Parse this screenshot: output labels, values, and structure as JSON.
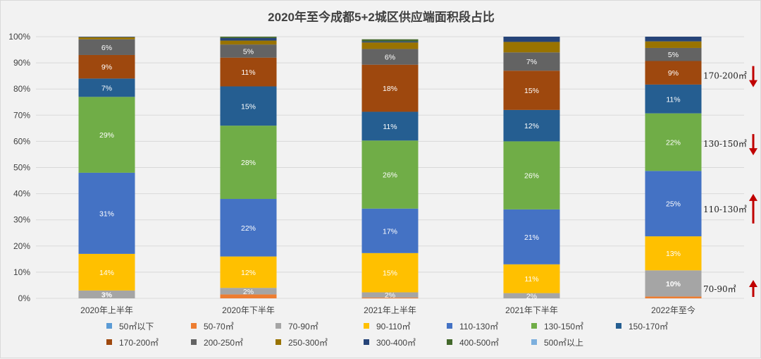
{
  "chart_data": {
    "type": "bar",
    "stacked": true,
    "percent": true,
    "title": "2020年至今成都5+2城区供应端面积段占比",
    "categories": [
      "2020年上半年",
      "2020年下半年",
      "2021年上半年",
      "2021年下半年",
      "2022年至今"
    ],
    "ylim": [
      0,
      100
    ],
    "yticks": [
      "0%",
      "10%",
      "20%",
      "30%",
      "40%",
      "50%",
      "60%",
      "70%",
      "80%",
      "90%",
      "100%"
    ],
    "legend_position": "bottom",
    "series": [
      {
        "name": "50㎡以下",
        "color": "#5b9bd5",
        "values": [
          0,
          0,
          0,
          0,
          0
        ],
        "labels": [
          "",
          "",
          "",
          "",
          ""
        ]
      },
      {
        "name": "50-70㎡",
        "color": "#ed7d31",
        "values": [
          0,
          1.5,
          0.3,
          0,
          0.7
        ],
        "labels": [
          "",
          "",
          "",
          "",
          ""
        ]
      },
      {
        "name": "70-90㎡",
        "color": "#a5a5a5",
        "values": [
          3,
          2.5,
          2,
          2,
          10
        ],
        "labels": [
          "3%",
          "2%",
          "2%",
          "2%",
          "10%"
        ]
      },
      {
        "name": "90-110㎡",
        "color": "#ffc000",
        "values": [
          14,
          12,
          15,
          11,
          13
        ],
        "labels": [
          "14%",
          "12%",
          "15%",
          "11%",
          "13%"
        ]
      },
      {
        "name": "110-130㎡",
        "color": "#4472c4",
        "values": [
          31,
          22,
          17,
          21,
          25
        ],
        "labels": [
          "31%",
          "22%",
          "17%",
          "21%",
          "25%"
        ]
      },
      {
        "name": "130-150㎡",
        "color": "#70ad47",
        "values": [
          29,
          28,
          26,
          26,
          22
        ],
        "labels": [
          "29%",
          "28%",
          "26%",
          "26%",
          "22%"
        ]
      },
      {
        "name": "150-170㎡",
        "color": "#255e91",
        "values": [
          7,
          15,
          11,
          12,
          11
        ],
        "labels": [
          "7%",
          "15%",
          "11%",
          "12%",
          "11%"
        ]
      },
      {
        "name": "170-200㎡",
        "color": "#9e480e",
        "values": [
          9,
          11,
          18,
          15,
          9
        ],
        "labels": [
          "9%",
          "11%",
          "18%",
          "15%",
          "9%"
        ]
      },
      {
        "name": "200-250㎡",
        "color": "#636363",
        "values": [
          6,
          5,
          6,
          7,
          5
        ],
        "labels": [
          "6%",
          "5%",
          "6%",
          "7%",
          "5%"
        ]
      },
      {
        "name": "250-300㎡",
        "color": "#997300",
        "values": [
          0.8,
          1.5,
          2.5,
          4,
          2.5
        ],
        "labels": [
          "",
          "",
          "",
          "",
          ""
        ]
      },
      {
        "name": "300-400㎡",
        "color": "#264478",
        "values": [
          0.2,
          1,
          0.4,
          2,
          1.8
        ],
        "labels": [
          "",
          "",
          "",
          "",
          ""
        ]
      },
      {
        "name": "400-500㎡",
        "color": "#43682b",
        "values": [
          0,
          0.5,
          0.8,
          0,
          0
        ],
        "labels": [
          "",
          "",
          "",
          "",
          ""
        ]
      },
      {
        "name": "500㎡以上",
        "color": "#7cafdd",
        "values": [
          0,
          0,
          0,
          0,
          0
        ],
        "labels": [
          "",
          "",
          "",
          "",
          ""
        ]
      }
    ],
    "annotations": [
      {
        "text": "170-200㎡",
        "direction": "down",
        "level": 85
      },
      {
        "text": "130-150㎡",
        "direction": "down",
        "level": 59
      },
      {
        "text": "110-130㎡",
        "direction": "up",
        "level": 34
      },
      {
        "text": "70-90㎡",
        "direction": "up",
        "level": 3.5
      }
    ],
    "annotation_color": "#c00000"
  }
}
